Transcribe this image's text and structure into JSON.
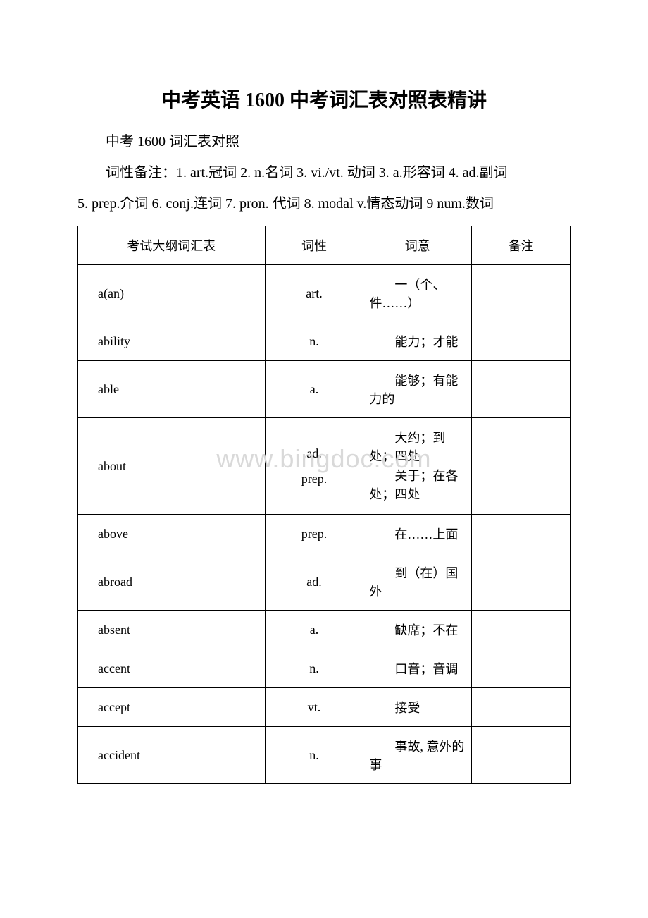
{
  "title": "中考英语 1600 中考词汇表对照表精讲",
  "subtitle": "中考 1600 词汇表对照",
  "legend_line1": "词性备注：1. art.冠词 2. n.名词 3. vi./vt. 动词 3. a.形容词 4. ad.副词",
  "legend_line2": "5. prep.介词 6. conj.连词 7. pron. 代词 8. modal v.情态动词 9 num.数词",
  "watermark": "www.bingdoc.com",
  "table": {
    "headers": {
      "word": "考试大纲词汇表",
      "pos": "词性",
      "meaning": "词意",
      "note": "备注"
    },
    "rows": [
      {
        "word": "a(an)",
        "pos": "art.",
        "meaning": "一（个、件……）",
        "note": ""
      },
      {
        "word": "ability",
        "pos": "n.",
        "meaning": "能力；才能",
        "note": ""
      },
      {
        "word": "able",
        "pos": "a.",
        "meaning": "能够；有能力的",
        "note": ""
      },
      {
        "word": "about",
        "pos": "ad.\nprep.",
        "meaning": "大约；到处；四处\n关于；在各处；四处",
        "note": ""
      },
      {
        "word": "above",
        "pos": "prep.",
        "meaning": "在……上面",
        "note": ""
      },
      {
        "word": "abroad",
        "pos": "ad.",
        "meaning": "到（在）国外",
        "note": ""
      },
      {
        "word": "absent",
        "pos": "a.",
        "meaning": "缺席；不在",
        "note": ""
      },
      {
        "word": "accent",
        "pos": "n.",
        "meaning": "口音；音调",
        "note": ""
      },
      {
        "word": "accept",
        "pos": "vt.",
        "meaning": "接受",
        "note": ""
      },
      {
        "word": "accident",
        "pos": "n.",
        "meaning": "事故, 意外的事",
        "note": ""
      }
    ]
  },
  "colors": {
    "text": "#000000",
    "background": "#ffffff",
    "border": "#000000",
    "watermark": "#d9d9d9"
  }
}
